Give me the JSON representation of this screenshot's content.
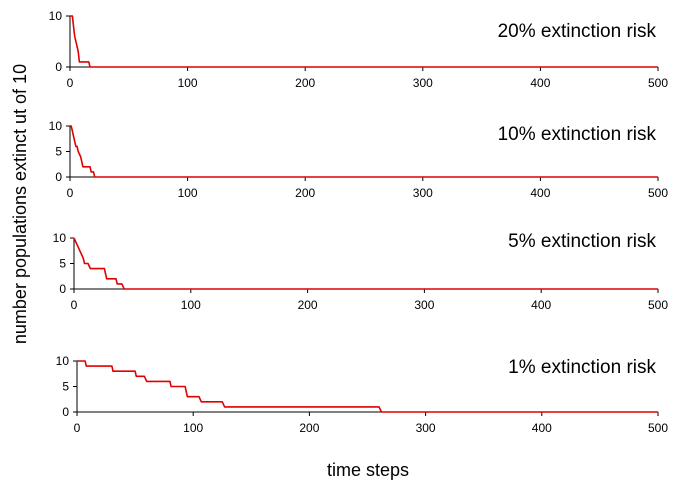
{
  "ylabel": "number populations extinct ut of 10",
  "xlabel": "time steps",
  "colors": {
    "line": "#e00000",
    "axis": "#000000"
  },
  "chart_data": [
    {
      "type": "line",
      "title": "20% extinction risk",
      "xlim": [
        0,
        500
      ],
      "ylim": [
        0,
        10
      ],
      "xticks": [
        0,
        100,
        200,
        300,
        400,
        500
      ],
      "yticks": [
        0,
        10
      ],
      "series": [
        {
          "x": [
            0,
            2,
            3,
            4,
            5,
            6,
            7,
            8,
            10,
            16,
            17,
            500
          ],
          "y": [
            10,
            10,
            8,
            6,
            5,
            4,
            3,
            1,
            1,
            1,
            0,
            0
          ]
        }
      ]
    },
    {
      "type": "line",
      "title": "10% extinction risk",
      "xlim": [
        0,
        500
      ],
      "ylim": [
        0,
        10
      ],
      "xticks": [
        0,
        100,
        200,
        300,
        400,
        500
      ],
      "yticks": [
        0,
        5,
        10
      ],
      "series": [
        {
          "x": [
            0,
            1,
            2,
            3,
            4,
            5,
            6,
            7,
            9,
            10,
            11,
            16,
            17,
            18,
            19,
            20,
            21,
            500
          ],
          "y": [
            10,
            10,
            9,
            8,
            7,
            6,
            6,
            5,
            4,
            3,
            2,
            2,
            2,
            1,
            1,
            1,
            0,
            0
          ]
        }
      ]
    },
    {
      "type": "line",
      "title": "5% extinction risk",
      "xlim": [
        0,
        500
      ],
      "ylim": [
        0,
        10
      ],
      "xticks": [
        0,
        100,
        200,
        300,
        400,
        500
      ],
      "yticks": [
        0,
        5,
        10
      ],
      "series": [
        {
          "x": [
            0,
            2,
            4,
            6,
            8,
            9,
            12,
            14,
            15,
            26,
            27,
            28,
            36,
            37,
            41,
            43,
            500
          ],
          "y": [
            10,
            9,
            8,
            7,
            6,
            5,
            5,
            4,
            4,
            4,
            3,
            2,
            2,
            1,
            1,
            0,
            0
          ]
        }
      ]
    },
    {
      "type": "line",
      "title": "1% extinction risk",
      "xlim": [
        0,
        500
      ],
      "ylim": [
        0,
        10
      ],
      "xticks": [
        0,
        100,
        200,
        300,
        400,
        500
      ],
      "yticks": [
        0,
        5,
        10
      ],
      "series": [
        {
          "x": [
            0,
            7,
            8,
            30,
            31,
            50,
            51,
            58,
            60,
            80,
            81,
            93,
            95,
            105,
            107,
            125,
            127,
            260,
            262,
            500
          ],
          "y": [
            10,
            10,
            9,
            9,
            8,
            8,
            7,
            7,
            6,
            6,
            5,
            5,
            3,
            3,
            2,
            2,
            1,
            1,
            0,
            0
          ]
        }
      ]
    }
  ]
}
